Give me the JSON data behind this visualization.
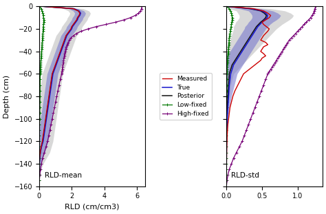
{
  "depth": [
    0,
    -2,
    -4,
    -6,
    -8,
    -10,
    -12,
    -14,
    -16,
    -18,
    -20,
    -22,
    -24,
    -26,
    -28,
    -30,
    -32,
    -34,
    -36,
    -38,
    -40,
    -42,
    -44,
    -46,
    -48,
    -50,
    -52,
    -54,
    -56,
    -58,
    -60,
    -65,
    -70,
    -75,
    -80,
    -85,
    -90,
    -95,
    -100,
    -105,
    -110,
    -115,
    -120,
    -125,
    -130,
    -135,
    -140,
    -145,
    -150,
    -155,
    -160
  ],
  "mean_measured": [
    0.3,
    2.1,
    2.4,
    2.5,
    2.45,
    2.35,
    2.3,
    2.2,
    2.1,
    2.0,
    1.95,
    1.85,
    1.75,
    1.65,
    1.6,
    1.55,
    1.5,
    1.45,
    1.4,
    1.35,
    1.3,
    1.25,
    1.2,
    1.15,
    1.1,
    1.05,
    1.0,
    0.95,
    0.9,
    0.85,
    0.8,
    0.75,
    0.7,
    0.65,
    0.6,
    0.55,
    0.5,
    0.45,
    0.4,
    0.35,
    0.3,
    0.25,
    0.2,
    0.12,
    0.07,
    0.03,
    0.01,
    0.005,
    0.002,
    0.001,
    0.0
  ],
  "mean_true": [
    0.3,
    2.15,
    2.45,
    2.55,
    2.5,
    2.4,
    2.35,
    2.25,
    2.15,
    2.05,
    2.0,
    1.9,
    1.8,
    1.7,
    1.65,
    1.6,
    1.55,
    1.5,
    1.45,
    1.4,
    1.35,
    1.3,
    1.25,
    1.2,
    1.15,
    1.1,
    1.05,
    1.0,
    0.95,
    0.9,
    0.85,
    0.8,
    0.75,
    0.7,
    0.65,
    0.6,
    0.55,
    0.5,
    0.45,
    0.4,
    0.35,
    0.3,
    0.25,
    0.15,
    0.08,
    0.04,
    0.015,
    0.006,
    0.002,
    0.001,
    0.0
  ],
  "mean_posterior": [
    0.28,
    2.1,
    2.42,
    2.52,
    2.47,
    2.37,
    2.32,
    2.22,
    2.12,
    2.02,
    1.97,
    1.87,
    1.77,
    1.67,
    1.62,
    1.57,
    1.52,
    1.47,
    1.42,
    1.37,
    1.32,
    1.27,
    1.22,
    1.17,
    1.12,
    1.07,
    1.02,
    0.97,
    0.92,
    0.87,
    0.82,
    0.77,
    0.72,
    0.67,
    0.62,
    0.57,
    0.52,
    0.47,
    0.42,
    0.37,
    0.32,
    0.27,
    0.22,
    0.13,
    0.07,
    0.03,
    0.01,
    0.005,
    0.002,
    0.001,
    0.0
  ],
  "mean_post_upper": [
    0.4,
    2.4,
    2.75,
    2.85,
    2.8,
    2.7,
    2.65,
    2.55,
    2.45,
    2.35,
    2.3,
    2.2,
    2.1,
    2.0,
    1.95,
    1.9,
    1.85,
    1.8,
    1.75,
    1.7,
    1.65,
    1.6,
    1.55,
    1.5,
    1.45,
    1.4,
    1.35,
    1.3,
    1.25,
    1.2,
    1.15,
    1.1,
    1.05,
    1.0,
    0.95,
    0.9,
    0.85,
    0.8,
    0.75,
    0.7,
    0.65,
    0.6,
    0.55,
    0.45,
    0.35,
    0.2,
    0.1,
    0.05,
    0.02,
    0.01,
    0.0
  ],
  "mean_post_lower": [
    0.16,
    1.8,
    2.09,
    2.19,
    2.14,
    2.04,
    1.99,
    1.89,
    1.79,
    1.69,
    1.64,
    1.54,
    1.44,
    1.34,
    1.29,
    1.24,
    1.19,
    1.14,
    1.09,
    1.04,
    0.99,
    0.94,
    0.89,
    0.84,
    0.79,
    0.74,
    0.69,
    0.64,
    0.59,
    0.54,
    0.49,
    0.44,
    0.39,
    0.34,
    0.29,
    0.24,
    0.19,
    0.14,
    0.09,
    0.04,
    0.0,
    0.0,
    0.0,
    0.0,
    0.0,
    0.0,
    0.0,
    0.0,
    0.0,
    0.0,
    0.0
  ],
  "mean_post_outer_upper": [
    0.55,
    2.7,
    3.05,
    3.15,
    3.1,
    3.0,
    2.95,
    2.85,
    2.75,
    2.65,
    2.6,
    2.5,
    2.4,
    2.3,
    2.25,
    2.2,
    2.15,
    2.1,
    2.05,
    2.0,
    1.95,
    1.9,
    1.85,
    1.8,
    1.75,
    1.7,
    1.65,
    1.6,
    1.55,
    1.5,
    1.45,
    1.4,
    1.35,
    1.3,
    1.25,
    1.2,
    1.15,
    1.1,
    1.05,
    1.0,
    0.95,
    0.9,
    0.85,
    0.75,
    0.65,
    0.45,
    0.25,
    0.12,
    0.05,
    0.02,
    0.0
  ],
  "mean_post_outer_lower": [
    0.05,
    1.5,
    1.79,
    1.89,
    1.84,
    1.74,
    1.69,
    1.59,
    1.49,
    1.39,
    1.34,
    1.24,
    1.14,
    1.04,
    0.99,
    0.94,
    0.89,
    0.84,
    0.79,
    0.74,
    0.69,
    0.64,
    0.59,
    0.54,
    0.49,
    0.44,
    0.39,
    0.34,
    0.29,
    0.24,
    0.19,
    0.14,
    0.09,
    0.04,
    0.0,
    0.0,
    0.0,
    0.0,
    0.0,
    0.0,
    0.0,
    0.0,
    0.0,
    0.0,
    0.0,
    0.0,
    0.0,
    0.0,
    0.0,
    0.0,
    0.0
  ],
  "mean_low_fixed": [
    0.05,
    0.12,
    0.18,
    0.22,
    0.25,
    0.27,
    0.28,
    0.28,
    0.27,
    0.26,
    0.25,
    0.24,
    0.23,
    0.22,
    0.21,
    0.2,
    0.19,
    0.18,
    0.17,
    0.16,
    0.15,
    0.14,
    0.13,
    0.12,
    0.11,
    0.1,
    0.09,
    0.085,
    0.08,
    0.075,
    0.07,
    0.065,
    0.06,
    0.055,
    0.05,
    0.045,
    0.04,
    0.035,
    0.03,
    0.025,
    0.02,
    0.015,
    0.01,
    0.008,
    0.005,
    0.003,
    0.002,
    0.001,
    0.0005,
    0.0002,
    0.0
  ],
  "mean_high_fixed": [
    6.3,
    6.28,
    6.22,
    6.1,
    5.9,
    5.6,
    5.2,
    4.7,
    4.1,
    3.5,
    3.0,
    2.6,
    2.3,
    2.1,
    1.95,
    1.85,
    1.78,
    1.72,
    1.67,
    1.63,
    1.6,
    1.57,
    1.55,
    1.52,
    1.5,
    1.48,
    1.46,
    1.44,
    1.42,
    1.4,
    1.38,
    1.3,
    1.22,
    1.15,
    1.08,
    1.01,
    0.94,
    0.87,
    0.8,
    0.73,
    0.66,
    0.59,
    0.52,
    0.42,
    0.32,
    0.22,
    0.14,
    0.08,
    0.04,
    0.01,
    0.0
  ],
  "std_measured": [
    0.02,
    0.38,
    0.52,
    0.58,
    0.62,
    0.6,
    0.55,
    0.5,
    0.52,
    0.56,
    0.6,
    0.58,
    0.55,
    0.52,
    0.5,
    0.48,
    0.55,
    0.58,
    0.52,
    0.5,
    0.48,
    0.52,
    0.55,
    0.5,
    0.48,
    0.44,
    0.4,
    0.36,
    0.32,
    0.28,
    0.24,
    0.2,
    0.16,
    0.12,
    0.09,
    0.07,
    0.05,
    0.04,
    0.03,
    0.02,
    0.015,
    0.01,
    0.008,
    0.005,
    0.003,
    0.002,
    0.001,
    0.0005,
    0.0002,
    0.0001,
    0.0
  ],
  "std_true": [
    0.02,
    0.35,
    0.5,
    0.55,
    0.58,
    0.57,
    0.54,
    0.5,
    0.47,
    0.44,
    0.42,
    0.4,
    0.38,
    0.36,
    0.34,
    0.32,
    0.3,
    0.28,
    0.26,
    0.24,
    0.22,
    0.2,
    0.18,
    0.16,
    0.14,
    0.12,
    0.1,
    0.09,
    0.08,
    0.07,
    0.06,
    0.05,
    0.04,
    0.035,
    0.03,
    0.025,
    0.02,
    0.015,
    0.01,
    0.008,
    0.006,
    0.004,
    0.003,
    0.002,
    0.001,
    0.0008,
    0.0005,
    0.0002,
    0.0001,
    5e-05,
    0.0
  ],
  "std_posterior": [
    0.02,
    0.33,
    0.48,
    0.53,
    0.56,
    0.55,
    0.52,
    0.48,
    0.45,
    0.42,
    0.4,
    0.38,
    0.36,
    0.34,
    0.32,
    0.3,
    0.28,
    0.26,
    0.24,
    0.22,
    0.2,
    0.18,
    0.16,
    0.14,
    0.12,
    0.1,
    0.08,
    0.07,
    0.06,
    0.05,
    0.04,
    0.035,
    0.03,
    0.025,
    0.02,
    0.015,
    0.01,
    0.008,
    0.006,
    0.004,
    0.003,
    0.002,
    0.001,
    0.0008,
    0.0005,
    0.0003,
    0.0002,
    0.0001,
    5e-05,
    2e-05,
    0.0
  ],
  "std_post_upper": [
    0.035,
    0.48,
    0.65,
    0.72,
    0.76,
    0.74,
    0.7,
    0.65,
    0.61,
    0.58,
    0.55,
    0.53,
    0.51,
    0.49,
    0.47,
    0.45,
    0.43,
    0.41,
    0.39,
    0.37,
    0.35,
    0.33,
    0.31,
    0.29,
    0.27,
    0.25,
    0.23,
    0.21,
    0.19,
    0.17,
    0.15,
    0.13,
    0.11,
    0.09,
    0.07,
    0.055,
    0.04,
    0.03,
    0.02,
    0.015,
    0.01,
    0.007,
    0.005,
    0.003,
    0.002,
    0.001,
    0.0007,
    0.0004,
    0.0002,
    0.0001,
    0.0
  ],
  "std_post_lower": [
    0.005,
    0.18,
    0.31,
    0.34,
    0.36,
    0.36,
    0.34,
    0.31,
    0.29,
    0.26,
    0.25,
    0.23,
    0.21,
    0.19,
    0.17,
    0.15,
    0.13,
    0.11,
    0.09,
    0.07,
    0.05,
    0.03,
    0.01,
    0.0,
    0.0,
    0.0,
    0.0,
    0.0,
    0.0,
    0.0,
    0.0,
    0.0,
    0.0,
    0.0,
    0.0,
    0.0,
    0.0,
    0.0,
    0.0,
    0.0,
    0.0,
    0.0,
    0.0,
    0.0,
    0.0,
    0.0,
    0.0,
    0.0,
    0.0,
    0.0,
    0.0
  ],
  "std_post_outer_upper": [
    0.05,
    0.62,
    0.82,
    0.9,
    0.94,
    0.92,
    0.88,
    0.83,
    0.78,
    0.74,
    0.7,
    0.67,
    0.64,
    0.61,
    0.58,
    0.55,
    0.52,
    0.49,
    0.46,
    0.43,
    0.4,
    0.37,
    0.34,
    0.31,
    0.28,
    0.25,
    0.22,
    0.19,
    0.16,
    0.13,
    0.1,
    0.08,
    0.06,
    0.05,
    0.04,
    0.03,
    0.02,
    0.015,
    0.01,
    0.008,
    0.005,
    0.003,
    0.002,
    0.001,
    0.0007,
    0.0005,
    0.0003,
    0.0002,
    0.0001,
    5e-05,
    0.0
  ],
  "std_post_outer_lower": [
    0.0,
    0.04,
    0.14,
    0.16,
    0.18,
    0.18,
    0.16,
    0.13,
    0.12,
    0.1,
    0.1,
    0.09,
    0.08,
    0.07,
    0.06,
    0.05,
    0.04,
    0.03,
    0.02,
    0.01,
    0.0,
    0.0,
    0.0,
    0.0,
    0.0,
    0.0,
    0.0,
    0.0,
    0.0,
    0.0,
    0.0,
    0.0,
    0.0,
    0.0,
    0.0,
    0.0,
    0.0,
    0.0,
    0.0,
    0.0,
    0.0,
    0.0,
    0.0,
    0.0,
    0.0,
    0.0,
    0.0,
    0.0,
    0.0,
    0.0,
    0.0
  ],
  "std_low_fixed": [
    0.01,
    0.04,
    0.06,
    0.07,
    0.075,
    0.08,
    0.08,
    0.075,
    0.07,
    0.065,
    0.06,
    0.055,
    0.05,
    0.045,
    0.04,
    0.038,
    0.035,
    0.032,
    0.03,
    0.028,
    0.025,
    0.022,
    0.02,
    0.018,
    0.016,
    0.014,
    0.012,
    0.011,
    0.01,
    0.009,
    0.008,
    0.007,
    0.006,
    0.005,
    0.004,
    0.003,
    0.003,
    0.002,
    0.002,
    0.001,
    0.001,
    0.001,
    0.0008,
    0.0005,
    0.0003,
    0.0002,
    0.0001,
    5e-05,
    2e-05,
    1e-05,
    0.0
  ],
  "std_high_fixed": [
    1.25,
    1.24,
    1.23,
    1.22,
    1.2,
    1.18,
    1.15,
    1.12,
    1.09,
    1.06,
    1.03,
    1.0,
    0.97,
    0.94,
    0.91,
    0.88,
    0.86,
    0.84,
    0.82,
    0.8,
    0.78,
    0.76,
    0.74,
    0.72,
    0.7,
    0.68,
    0.66,
    0.64,
    0.62,
    0.6,
    0.58,
    0.55,
    0.52,
    0.49,
    0.46,
    0.43,
    0.4,
    0.37,
    0.34,
    0.31,
    0.28,
    0.25,
    0.22,
    0.18,
    0.14,
    0.1,
    0.07,
    0.04,
    0.02,
    0.008,
    0.0
  ],
  "ylim": [
    -160,
    0
  ],
  "mean_xlim": [
    0,
    6.5
  ],
  "std_xlim": [
    0.0,
    1.35
  ],
  "mean_xticks": [
    0,
    2,
    4,
    6
  ],
  "std_xticks": [
    0.0,
    0.5,
    1.0
  ],
  "mean_xlabel": "RLD (cm/cm3)",
  "mean_label": "RLD-mean",
  "std_label": "RLD-std",
  "ylabel": "Depth (cm)",
  "yticks": [
    0,
    -20,
    -40,
    -60,
    -80,
    -100,
    -120,
    -140,
    -160
  ],
  "color_measured": "#cc0000",
  "color_true": "#1414cc",
  "color_posterior": "#111111",
  "color_low_fixed": "#007700",
  "color_high_fixed": "#770077",
  "color_fill_inner": "#7070cc",
  "color_fill_outer": "#bbbbdd",
  "color_fill_grey": "#aaaaaa",
  "legend_labels": [
    "Measured",
    "True",
    "Posterior",
    "Low-fixed",
    "High-fixed"
  ]
}
